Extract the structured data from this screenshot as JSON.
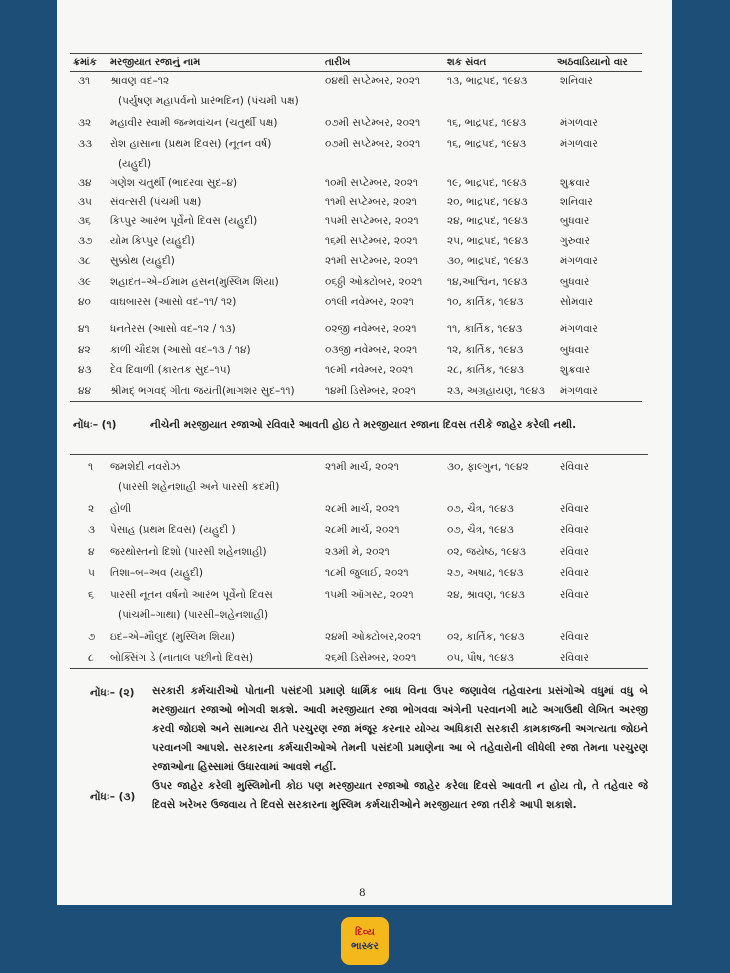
{
  "header": {
    "columns": [
      "ક્રમાંક",
      "મરજીયાત રજાનું નામ",
      "તારીખ",
      "શક સંવત",
      "અઠવાડિયાનો વાર"
    ]
  },
  "table1": {
    "rows": [
      {
        "no": "૩૧",
        "name": [
          "શ્રાવણ વદ–૧૨",
          "(પર્યુષણ મહાપર્વનો પ્રારંભદિન) (પંચમી પક્ષ)"
        ],
        "date": "૦૪થી સપ્ટેમ્બર, ૨૦૨૧",
        "shak": "૧૩, ભાદ્રપદ, ૧૯૪૩",
        "day": "શનિવાર"
      },
      {
        "no": "૩૨",
        "name": [
          "મહાવીર સ્વામી જન્મવાંચન (ચતુર્થી પક્ષ)"
        ],
        "date": "૦૭મી સપ્ટેમ્બર, ૨૦૨૧",
        "shak": "૧૬, ભાદ્રપદ, ૧૯૪૩",
        "day": "મંગળવાર"
      },
      {
        "no": "૩૩",
        "name": [
          "રોશ હાસાના (પ્રથમ દિવસ) (નૂતન વર્ષ)",
          "(યહુદી)"
        ],
        "date": "૦૭મી સપ્ટેમ્બર, ૨૦૨૧",
        "shak": "૧૬, ભાદ્રપદ, ૧૯૪૩",
        "day": "મંગળવાર"
      },
      {
        "no": "૩૪",
        "name": [
          "ગણેશ ચતુર્થી (ભાદરવા સુદ–૪)"
        ],
        "date": "૧૦મી સપ્ટેમ્બર, ૨૦૨૧",
        "shak": "૧૯, ભાદ્રપદ, ૧૯૪૩",
        "day": "શુક્રવાર"
      },
      {
        "no": "૩૫",
        "name": [
          "સંવત્સરી (પંચમી પક્ષ)"
        ],
        "date": "૧૧મી સપ્ટેમ્બર, ૨૦૨૧",
        "shak": "૨૦, ભાદ્રપદ, ૧૯૪૩",
        "day": "શનિવાર"
      },
      {
        "no": "૩૬",
        "name": [
          "કિપ્પુર આરંભ પૂર્વેનો દિવસ (યહુદી)"
        ],
        "date": "૧૫મી સપ્ટેમ્બર, ૨૦૨૧",
        "shak": "૨૪, ભાદ્રપદ, ૧૯૪૩",
        "day": "બુધવાર"
      },
      {
        "no": "૩૭",
        "name": [
          "યોમ કિપ્પુર (યહુદી)"
        ],
        "date": "૧૬મી સપ્ટેમ્બર, ૨૦૨૧",
        "shak": "૨૫, ભાદ્રપદ, ૧૯૪૩",
        "day": "ગુરુવાર"
      },
      {
        "no": "૩૮",
        "name": [
          "સુક્કોથ (યહુદી)"
        ],
        "date": "૨૧મી સપ્ટેમ્બર, ૨૦૨૧",
        "shak": "૩૦, ભાદ્રપદ, ૧૯૪૩",
        "day": "મંગળવાર"
      },
      {
        "no": "૩૯",
        "name": [
          "શહાદત–એ–ઈમામ હસન(મુસ્લિમ શિયા)"
        ],
        "date": "૦૬ઠ્ઠી ઓક્ટોબર, ૨૦૨૧",
        "shak": "૧૪,આશ્વિન, ૧૯૪૩",
        "day": "બુધવાર"
      },
      {
        "no": "૪૦",
        "name": [
          "વાઘબારસ (આસો વદ–૧૧/ ૧૨)"
        ],
        "date": "૦૧લી નવેમ્બર, ૨૦૨૧",
        "shak": "૧૦, કાર્તિક, ૧૯૪૩",
        "day": "સોમવાર"
      },
      {
        "no": "૪૧",
        "name": [
          "ધનતેરસ (આસો વદ–૧૨ / ૧૩)"
        ],
        "date": "૦૨જી નવેમ્બર, ૨૦૨૧",
        "shak": "૧૧, કાર્તિક, ૧૯૪૩",
        "day": "મંગળવાર"
      },
      {
        "no": "૪૨",
        "name": [
          "કાળી ચૌદશ (આસો વદ–૧૩ / ૧૪)"
        ],
        "date": "૦૩જી નવેમ્બર, ૨૦૨૧",
        "shak": "૧૨, કાર્તિક, ૧૯૪૩",
        "day": "બુધવાર"
      },
      {
        "no": "૪૩",
        "name": [
          "દેવ દિવાળી (કારતક સુદ–૧૫)"
        ],
        "date": "૧૯મી નવેમ્બર, ૨૦૨૧",
        "shak": "૨૮, કાર્તિક, ૧૯૪૩",
        "day": "શુક્રવાર"
      },
      {
        "no": "૪૪",
        "name": [
          "શ્રીમદ્ ભગવદ્ ગીતા જયંતી(માગશર સુદ–૧૧)"
        ],
        "date": "૧૪મી ડિસેમ્બર, ૨૦૨૧",
        "shak": "૨૩, અગ્રહાયણ, ૧૯૪૩",
        "day": "મંગળવાર"
      }
    ]
  },
  "note1": {
    "label": "નોંધઃ– (૧)",
    "text": "નીચેની મરજીયાત રજાઓ રવિવારે આવતી હોઇ તે મરજીયાત રજાના દિવસ તરીકે જાહેર કરેલી નથી."
  },
  "table2": {
    "rows": [
      {
        "no": "૧",
        "name": [
          "જમશેદી નવરોઝ",
          "(પારસી શહેનશાહી અને પારસી કદમી)"
        ],
        "date": "૨૧મી માર્ચ, ૨૦૨૧",
        "shak": "૩૦, ફાલ્ગુન, ૧૯૪૨",
        "day": "રવિવાર"
      },
      {
        "no": "૨",
        "name": [
          "હોળી"
        ],
        "date": "૨૮મી માર્ચ, ૨૦૨૧",
        "shak": "૦૭, ચૈત્ર, ૧૯૪૩",
        "day": "રવિવાર"
      },
      {
        "no": "૩",
        "name": [
          "પેસાહ (પ્રથમ દિવસ) (યહુદી )"
        ],
        "date": "૨૮મી માર્ચ, ૨૦૨૧",
        "shak": "૦૭, ચૈત્ર, ૧૯૪૩",
        "day": "રવિવાર"
      },
      {
        "no": "૪",
        "name": [
          "જરથોસ્તનો દિશો (પારસી શહેનશાહી)"
        ],
        "date": "૨૩મી મે, ૨૦૨૧",
        "shak": "૦૨, જયેષ્ઠ, ૧૯૪૩",
        "day": "રવિવાર"
      },
      {
        "no": "૫",
        "name": [
          "તિશા–બ–અવ (યહુદી)"
        ],
        "date": "૧૮મી જુલાઈ, ૨૦૨૧",
        "shak": "૨૭, અષાઢ, ૧૯૪૩",
        "day": "રવિવાર"
      },
      {
        "no": "૬",
        "name": [
          "પારસી નૂતન વર્ષનો આરંભ પૂર્વેનો દિવસ",
          "(પાંચમી–ગાથા) (પારસી–શહેનશાહી)"
        ],
        "date": "૧૫મી ઑગસ્ટ, ૨૦૨૧",
        "shak": "૨૪, શ્રાવણ, ૧૯૪૩",
        "day": "રવિવાર"
      },
      {
        "no": "૭",
        "name": [
          "ઇદ–એ–મૌલુદ (મુસ્લિમ શિયા)"
        ],
        "date": "૨૪મી ઓક્ટોબર,૨૦૨૧",
        "shak": "૦૨, કાર્તિક, ૧૯૪૩",
        "day": "રવિવાર"
      },
      {
        "no": "૮",
        "name": [
          "બોક્સિંગ ડે (નાતાલ પછીનો દિવસ)"
        ],
        "date": "૨૬મી ડિસેમ્બર, ૨૦૨૧",
        "shak": "૦૫, પૌષ, ૧૯૪૩",
        "day": "રવિવાર"
      }
    ]
  },
  "note2": {
    "label": "નોંધઃ– (૨)",
    "text": "સરકારી કર્મચારીઓ પોતાની પસંદગી પ્રમાણે ધાર્મિક બાધ વિના ઉપર જણાવેલ તહેવારના પ્રસંગોએ વધુમાં વધુ બે મરજીયાત રજાઓ ભોગવી શકશે. આવી મરજીયાત રજા ભોગવવા અંગેની પરવાનગી માટે અગાઉથી લેખિત અરજી કરવી જોઇશે અને સામાન્ય રીતે પરચુરણ રજા મંજૂર કરનાર યોગ્ય અધિકારી સરકારી કામકાજની અગત્યતા જોઇને પરવાનગી આપશે. સરકારના કર્મચારીઓએ તેમની પસંદગી પ્રમાણેના આ બે તહેવારોની લીધેલી રજા તેમના પરચુરણ રજાઓના હિસ્સામાં ઉધારવામાં આવશે નહીં."
  },
  "note3": {
    "label": "નોંધઃ– (૩)",
    "text": "ઉપર જાહેર કરેલી મુસ્લિમોની કોઇ પણ મરજીયાત રજાઓ જાહેર કરેલા દિવસે આવતી ન હોય તો, તે તહેવાર જે દિવસે ખરેખર ઉજવાય તે દિવસે સરકારના મુસ્લિમ કર્મચારીઓને મરજીયાત રજા તરીકે આપી શકાશે."
  },
  "page_number": "8",
  "logo": {
    "line1": "દિવ્ય",
    "line2": "ભાસ્કર"
  }
}
